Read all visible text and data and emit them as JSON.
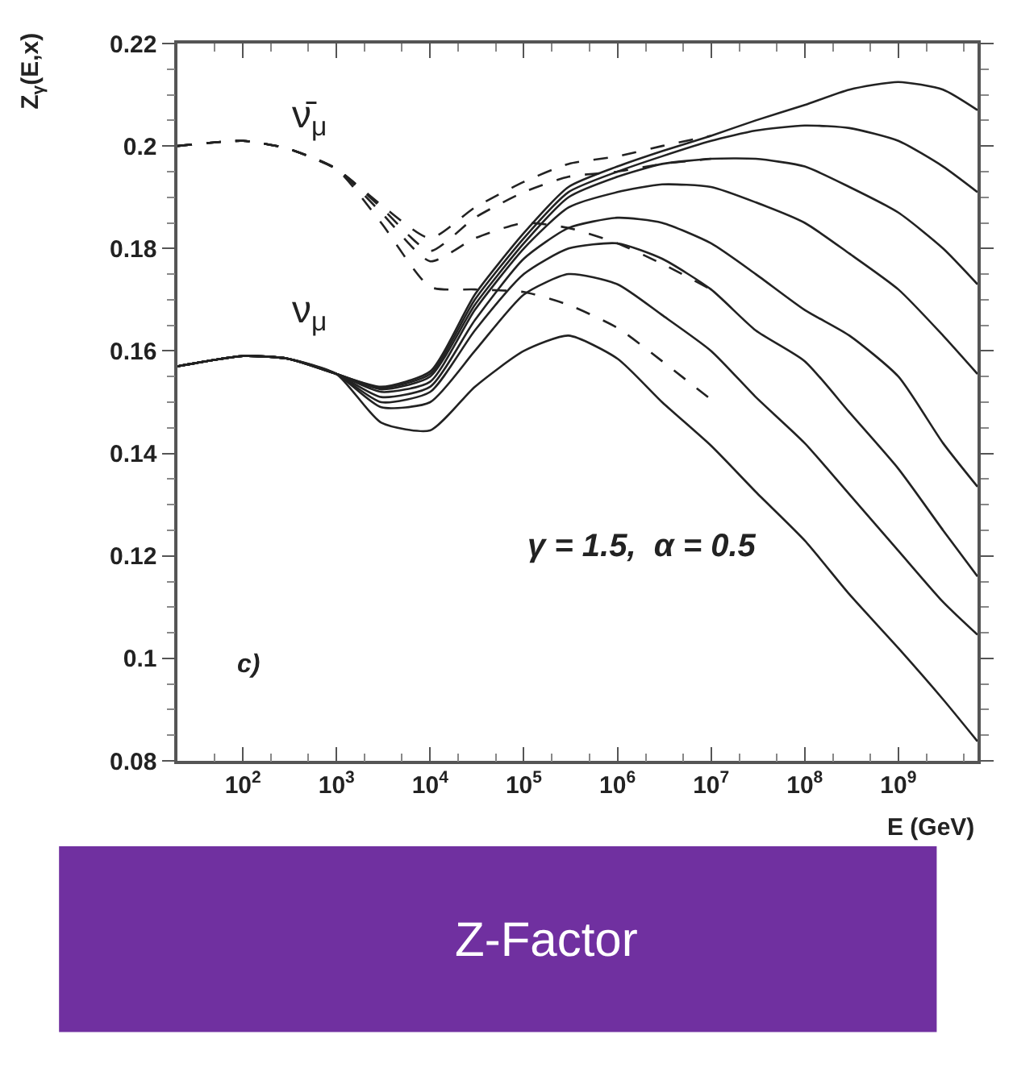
{
  "chart_data": {
    "type": "line",
    "title": "Z-Factor",
    "xlabel": "E (GeV)",
    "ylabel": "Z$_{γ}$(E,x)",
    "log": "x",
    "xlim": [
      20,
      7000000000
    ],
    "ylim": [
      0.08,
      0.22
    ],
    "xticks": [
      {
        "value": 100,
        "label": "10$^{2}$"
      },
      {
        "value": 1000,
        "label": "10$^{3}$"
      },
      {
        "value": 10000,
        "label": "10$^{4}$"
      },
      {
        "value": 100000,
        "label": "10$^{5}$"
      },
      {
        "value": 1000000,
        "label": "10$^{6}$"
      },
      {
        "value": 10000000,
        "label": "10$^{7}$"
      },
      {
        "value": 100000000,
        "label": "10$^{8}$"
      },
      {
        "value": 1000000000,
        "label": "10$^{9}$"
      }
    ],
    "yticks": [
      0.08,
      0.1,
      0.12,
      0.14,
      0.16,
      0.18,
      0.2,
      0.22
    ],
    "marker": "none",
    "x": [
      20,
      100,
      300,
      1000,
      3000,
      10000,
      30000,
      100000,
      300000,
      1000000,
      3000000,
      10000000,
      30000000,
      100000000,
      300000000,
      1000000000,
      3000000000,
      7000000000
    ],
    "series": [
      {
        "color": "#222222",
        "line_style": "solid",
        "values": [
          0.157,
          0.159,
          0.1585,
          0.1555,
          0.153,
          0.156,
          0.171,
          0.183,
          0.192,
          0.196,
          0.199,
          0.202,
          0.205,
          0.208,
          0.211,
          0.2125,
          0.211,
          0.207
        ]
      },
      {
        "color": "#222222",
        "line_style": "solid",
        "values": [
          0.157,
          0.159,
          0.1585,
          0.1555,
          0.1528,
          0.1555,
          0.17,
          0.182,
          0.191,
          0.195,
          0.198,
          0.201,
          0.203,
          0.204,
          0.2035,
          0.201,
          0.196,
          0.191
        ]
      },
      {
        "color": "#222222",
        "line_style": "solid",
        "values": [
          0.157,
          0.159,
          0.1585,
          0.1555,
          0.1525,
          0.155,
          0.169,
          0.181,
          0.19,
          0.194,
          0.1965,
          0.1975,
          0.1975,
          0.196,
          0.192,
          0.187,
          0.18,
          0.173
        ]
      },
      {
        "color": "#222222",
        "line_style": "solid",
        "values": [
          0.157,
          0.159,
          0.1585,
          0.1555,
          0.152,
          0.154,
          0.168,
          0.18,
          0.188,
          0.191,
          0.1925,
          0.192,
          0.189,
          0.185,
          0.179,
          0.172,
          0.163,
          0.1555
        ]
      },
      {
        "color": "#222222",
        "line_style": "solid",
        "values": [
          0.157,
          0.159,
          0.1585,
          0.1555,
          0.151,
          0.153,
          0.166,
          0.178,
          0.184,
          0.186,
          0.185,
          0.181,
          0.175,
          0.168,
          0.163,
          0.155,
          0.142,
          0.1335
        ]
      },
      {
        "color": "#222222",
        "line_style": "solid",
        "values": [
          0.157,
          0.159,
          0.1585,
          0.1555,
          0.15,
          0.152,
          0.164,
          0.175,
          0.18,
          0.181,
          0.178,
          0.172,
          0.164,
          0.158,
          0.148,
          0.137,
          0.125,
          0.116
        ]
      },
      {
        "color": "#222222",
        "line_style": "solid",
        "values": [
          0.157,
          0.159,
          0.1585,
          0.1555,
          0.149,
          0.15,
          0.16,
          0.171,
          0.175,
          0.173,
          0.167,
          0.16,
          0.151,
          0.142,
          0.132,
          0.121,
          0.111,
          0.1046
        ]
      },
      {
        "color": "#222222",
        "line_style": "solid",
        "values": [
          0.157,
          0.159,
          0.1585,
          0.1555,
          0.146,
          0.1445,
          0.153,
          0.16,
          0.163,
          0.1585,
          0.15,
          0.1415,
          0.1325,
          0.123,
          0.1125,
          0.102,
          0.092,
          0.0838
        ]
      },
      {
        "color": "#222222",
        "line_style": "dashed",
        "values": [
          0.2,
          0.201,
          0.1995,
          0.1955,
          0.1885,
          0.182,
          0.188,
          0.193,
          0.1965,
          0.198,
          0.2,
          0.202,
          null,
          null,
          null,
          null,
          null,
          null
        ]
      },
      {
        "color": "#222222",
        "line_style": "dashed",
        "values": [
          0.2,
          0.201,
          0.1995,
          0.1955,
          0.188,
          0.1795,
          0.186,
          0.191,
          0.194,
          0.195,
          0.1965,
          0.1975,
          null,
          null,
          null,
          null,
          null,
          null
        ]
      },
      {
        "color": "#222222",
        "line_style": "dashed",
        "values": [
          0.2,
          0.201,
          0.1995,
          0.1955,
          0.187,
          0.1775,
          0.182,
          0.185,
          0.184,
          0.181,
          0.177,
          0.172,
          null,
          null,
          null,
          null,
          null,
          null
        ]
      },
      {
        "color": "#222222",
        "line_style": "dashed",
        "values": [
          0.2,
          0.201,
          0.1995,
          0.1955,
          0.185,
          0.1725,
          0.172,
          0.1715,
          0.169,
          0.1645,
          0.158,
          0.1505,
          null,
          null,
          null,
          null,
          null,
          null
        ]
      }
    ],
    "annotations": [
      "ν̄$_{μ}$",
      "ν$_{μ}$",
      "γ = 1.5,  α = 0.5",
      "c)"
    ]
  }
}
